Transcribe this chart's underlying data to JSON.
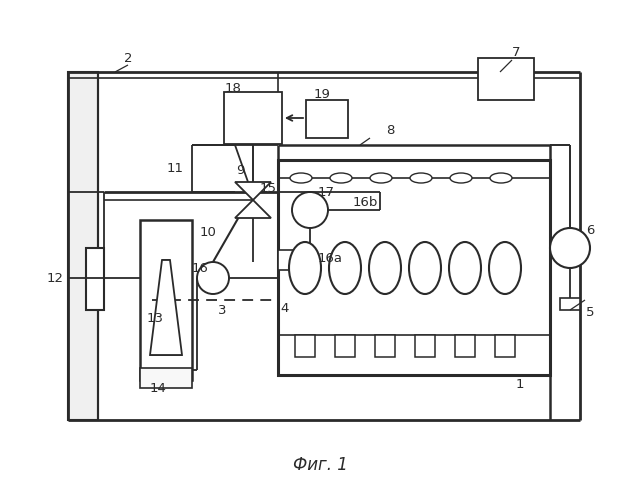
{
  "title": "Фиг. 1",
  "background_color": "#ffffff",
  "line_color": "#2a2a2a",
  "fig_width": 6.4,
  "fig_height": 4.97
}
